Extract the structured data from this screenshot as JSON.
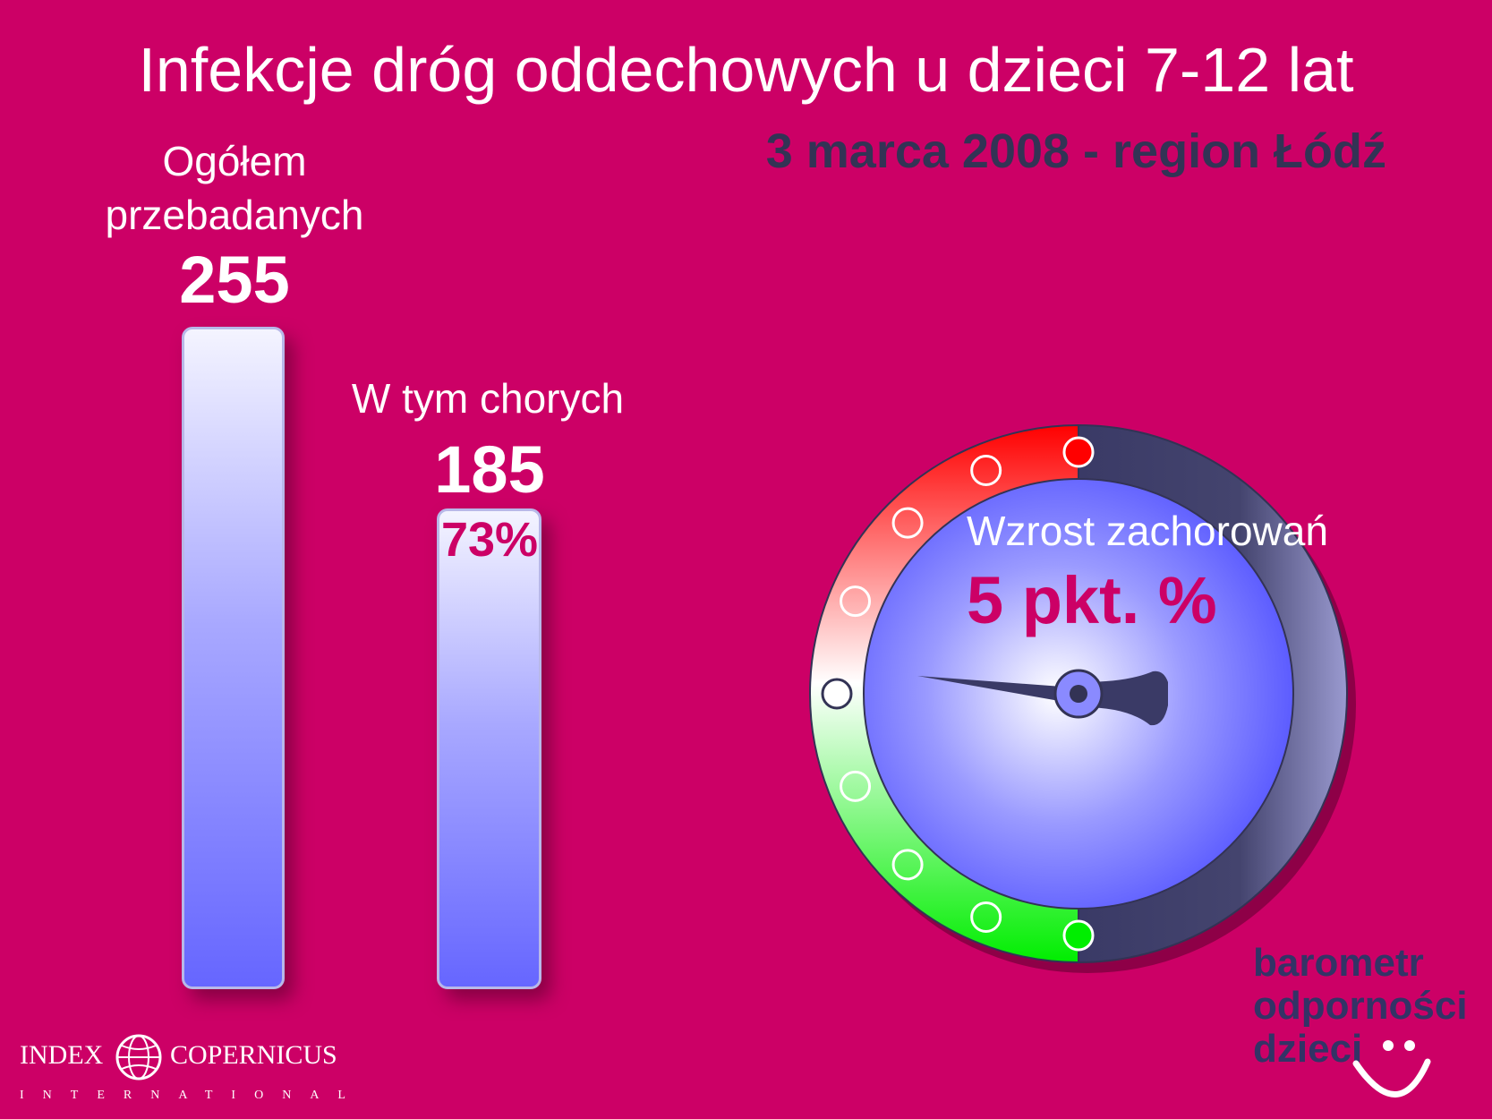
{
  "chart_data": {
    "type": "bar",
    "title": "Infekcje dróg oddechowych u dzieci 7-12 lat",
    "subtitle": "3 marca 2008 - region Łódź",
    "categories": [
      "Ogółem przebadanych",
      "W tym chorych"
    ],
    "values": [
      255,
      185
    ],
    "value_labels": [
      "255",
      "185"
    ],
    "percent_labels": [
      "",
      "73%"
    ],
    "ylim": [
      0,
      255
    ],
    "grid": false
  },
  "labels": {
    "total_line1": "Ogółem",
    "total_line2": "przebadanych",
    "sick": "W tym chorych"
  },
  "gauge": {
    "label": "Wzrost zachorowań",
    "value_text": "5 pkt. %",
    "needle_level": "lowest-red-marker",
    "colors": {
      "red": "#ff0000",
      "green": "#00ee00",
      "face": "#6f6fff",
      "dark": "#3a3a66"
    }
  },
  "brand": {
    "line1": "barometr",
    "line2": "odporności",
    "line3": "dzieci"
  },
  "logo": {
    "left": "INDEX",
    "right": "COPERNICUS",
    "sub": "INTERNATIONAL"
  },
  "colors": {
    "background": "#cc0066",
    "subtitle": "#333355",
    "bar_top": "#f4f4ff",
    "bar_bottom": "#6666ff"
  }
}
